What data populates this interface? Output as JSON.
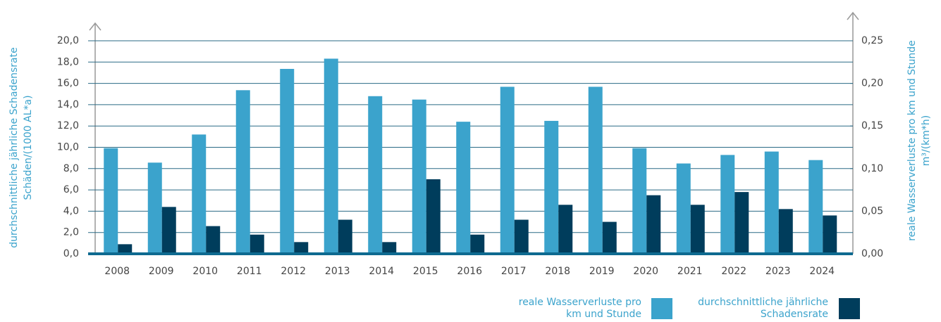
{
  "chart_data": {
    "type": "bar",
    "ylabel": [
      "durchschnittliche jährliche Schadensrate",
      "Schäden/(1000 AL*a)"
    ],
    "y2label": [
      "reale Wasserverluste pro km und Stunde",
      "m³/(km*h)"
    ],
    "categories": [
      "2008",
      "2009",
      "2010",
      "2011",
      "2012",
      "2013",
      "2014",
      "2015",
      "2016",
      "2017",
      "2018",
      "2019",
      "2020",
      "2021",
      "2022",
      "2023",
      "2024"
    ],
    "series": [
      {
        "name": "reale Wasserverluste pro km und Stunde",
        "color": "#3ba3cc",
        "axis": "y2",
        "values": [
          0.124,
          0.107,
          0.14,
          0.192,
          0.217,
          0.229,
          0.185,
          0.181,
          0.155,
          0.196,
          0.156,
          0.196,
          0.124,
          0.106,
          0.116,
          0.12,
          0.11
        ]
      },
      {
        "name": "durchschnittliche jährliche Schadensrate",
        "color": "#003d5c",
        "values": [
          0.9,
          4.4,
          2.6,
          1.8,
          1.1,
          3.2,
          1.1,
          7.0,
          1.8,
          3.2,
          4.6,
          3.0,
          5.5,
          4.6,
          5.8,
          4.2,
          3.6
        ]
      }
    ],
    "ylim": [
      0,
      20
    ],
    "yticks": [
      {
        "value": 0,
        "label": "0,0"
      },
      {
        "value": 2,
        "label": "2,0"
      },
      {
        "value": 4,
        "label": "4,0"
      },
      {
        "value": 6,
        "label": "6,0"
      },
      {
        "value": 8,
        "label": "8,0"
      },
      {
        "value": 10,
        "label": "10,0"
      },
      {
        "value": 12,
        "label": "12,0"
      },
      {
        "value": 14,
        "label": "14,0"
      },
      {
        "value": 16,
        "label": "16,0"
      },
      {
        "value": 18,
        "label": "18,0"
      },
      {
        "value": 20,
        "label": "20,0"
      }
    ],
    "y2lim": [
      0,
      0.25
    ],
    "y2ticks": [
      {
        "value": 0,
        "label": "0,00"
      },
      {
        "value": 0.05,
        "label": "0,05"
      },
      {
        "value": 0.1,
        "label": "0,10"
      },
      {
        "value": 0.15,
        "label": "0,15"
      },
      {
        "value": 0.2,
        "label": "0,20"
      },
      {
        "value": 0.25,
        "label": "0,25"
      }
    ],
    "grid": true
  }
}
